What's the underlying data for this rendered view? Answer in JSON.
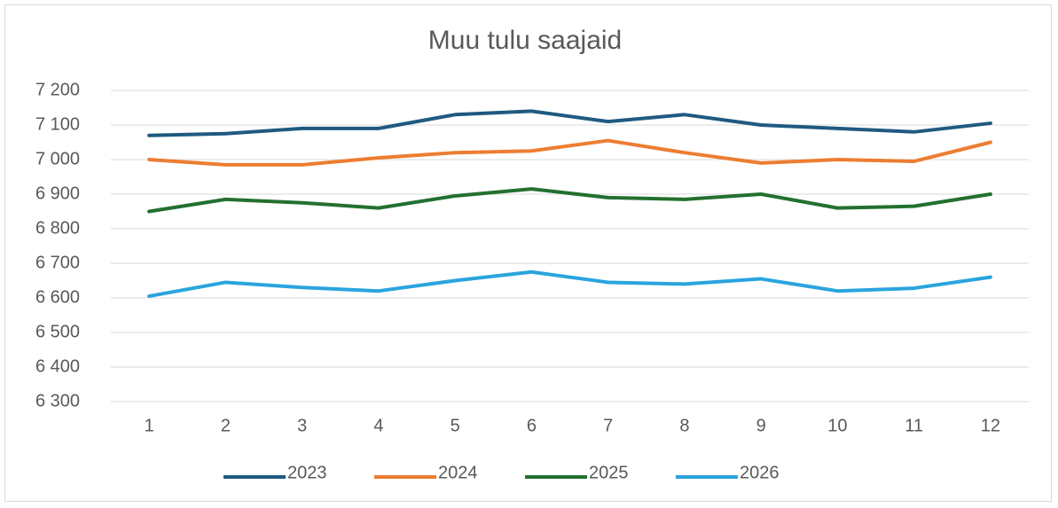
{
  "chart_data": {
    "type": "line",
    "title": "Muu tulu saajaid",
    "categories": [
      "1",
      "2",
      "3",
      "4",
      "5",
      "6",
      "7",
      "8",
      "9",
      "10",
      "11",
      "12"
    ],
    "series": [
      {
        "name": "2023",
        "color": "#1f5a80",
        "values": [
          7070,
          7075,
          7090,
          7090,
          7130,
          7140,
          7110,
          7130,
          7100,
          7090,
          7080,
          7105
        ]
      },
      {
        "name": "2024",
        "color": "#ed7d31",
        "values": [
          7000,
          6985,
          6985,
          7005,
          7020,
          7025,
          7055,
          7020,
          6990,
          7000,
          6995,
          7050
        ]
      },
      {
        "name": "2025",
        "color": "#23702f",
        "values": [
          6850,
          6885,
          6875,
          6860,
          6895,
          6915,
          6890,
          6885,
          6900,
          6860,
          6865,
          6900
        ]
      },
      {
        "name": "2026",
        "color": "#2aa4de",
        "values": [
          6605,
          6645,
          6630,
          6620,
          6650,
          6675,
          6645,
          6640,
          6655,
          6620,
          6628,
          6660
        ]
      }
    ],
    "ylim": [
      6300,
      7200
    ],
    "yticks": [
      {
        "value": 6300,
        "label": "6 300"
      },
      {
        "value": 6400,
        "label": "6 400"
      },
      {
        "value": 6500,
        "label": "6 500"
      },
      {
        "value": 6600,
        "label": "6 600"
      },
      {
        "value": 6700,
        "label": "6 700"
      },
      {
        "value": 6800,
        "label": "6 800"
      },
      {
        "value": 6900,
        "label": "6 900"
      },
      {
        "value": 7000,
        "label": "7 000"
      },
      {
        "value": 7100,
        "label": "7 100"
      },
      {
        "value": 7200,
        "label": "7 200"
      }
    ],
    "grid": true,
    "legend": "bottom"
  }
}
